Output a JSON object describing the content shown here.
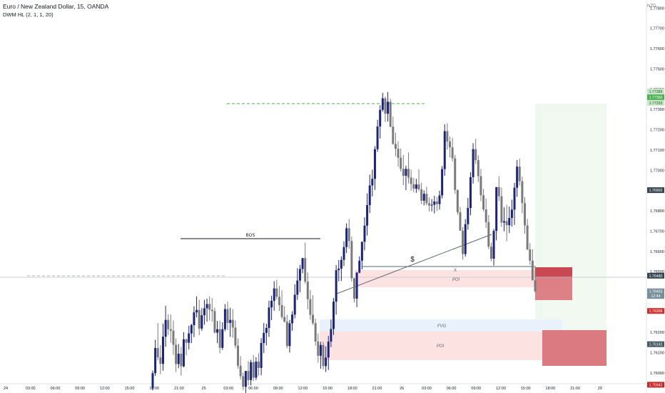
{
  "header": {
    "title": "Euro / New Zealand Dollar, 15, OANDA",
    "indicator": "DWM HL (2, 1, 1, 20)",
    "currency": "NZD"
  },
  "chart_data": {
    "type": "candlestick",
    "symbol": "EURNZD",
    "timeframe": "15",
    "ylim": [
      1.7594,
      1.7784
    ],
    "price_ticks": [
      1.778,
      1.777,
      1.776,
      1.775,
      1.774,
      1.773,
      1.772,
      1.771,
      1.77,
      1.769,
      1.768,
      1.767,
      1.766,
      1.765,
      1.762,
      1.761,
      1.76
    ],
    "time_ticks": [
      "24",
      "03:00",
      "06:00",
      "09:00",
      "12:00",
      "15:00",
      "18:00",
      "21:00",
      "25",
      "03:00",
      "06:00",
      "09:00",
      "12:00",
      "15:00",
      "18:00",
      "21:00",
      "26",
      "03:00",
      "06:00",
      "09:00",
      "12:00",
      "15:00",
      "18:00",
      "21:00",
      "29"
    ],
    "price_labels": [
      {
        "text": "1.77389",
        "value": 1.77389,
        "color": "#c8e6c9",
        "text_color": "#1b5e20"
      },
      {
        "text": "1.77360",
        "value": 1.7736,
        "color": "#4caf50",
        "text_color": "#ffffff"
      },
      {
        "text": "1.77333",
        "value": 1.77333,
        "color": "#c8e6c9",
        "text_color": "#1b5e20"
      },
      {
        "text": "1.76902",
        "value": 1.76902,
        "color": "#37474f",
        "text_color": "#ffffff"
      },
      {
        "text": "1.76480",
        "value": 1.7648,
        "color": "#37474f",
        "text_color": "#ffffff"
      },
      {
        "text": "1.76403",
        "value": 1.76403,
        "color": "#78909c",
        "text_color": "#ffffff"
      },
      {
        "text": "12:44",
        "value": 1.7638,
        "color": "#78909c",
        "text_color": "#ffffff"
      },
      {
        "text": "1.76306",
        "value": 1.76306,
        "color": "#d32f2f",
        "text_color": "#ffffff"
      },
      {
        "text": "1.76142",
        "value": 1.76142,
        "color": "#455a64",
        "text_color": "#ffffff"
      },
      {
        "text": "1.75942",
        "value": 1.75942,
        "color": "#c62828",
        "text_color": "#ffffff"
      }
    ],
    "annotations": {
      "bos": "BOS",
      "poi_upper": "POI",
      "fvg": "FVG",
      "poi_lower": "POI",
      "x_mark": "X",
      "liquidity": "$"
    },
    "colors": {
      "up": "#1a237e",
      "down": "#7a7a7a",
      "poi_fill": "#fde2e2",
      "fvg_fill": "#e8f1fc",
      "target_fill": "#e8f5e9",
      "stop_fill": "#d9747a"
    },
    "candles": [
      [
        1.75925,
        1.76012,
        1.75914,
        1.75999
      ],
      [
        1.75999,
        1.76164,
        1.75985,
        1.76123
      ],
      [
        1.76123,
        1.76247,
        1.76062,
        1.76077
      ],
      [
        1.76077,
        1.76137,
        1.75994,
        1.76045
      ],
      [
        1.76045,
        1.76243,
        1.76011,
        1.76179
      ],
      [
        1.76179,
        1.76331,
        1.76129,
        1.76262
      ],
      [
        1.76262,
        1.7629,
        1.76188,
        1.76216
      ],
      [
        1.76216,
        1.76289,
        1.76149,
        1.76208
      ],
      [
        1.76208,
        1.76259,
        1.76089,
        1.76139
      ],
      [
        1.76139,
        1.76171,
        1.76005,
        1.76044
      ],
      [
        1.76044,
        1.76143,
        1.76024,
        1.76095
      ],
      [
        1.76095,
        1.76129,
        1.75987,
        1.76033
      ],
      [
        1.76033,
        1.76201,
        1.76028,
        1.76166
      ],
      [
        1.76166,
        1.7617,
        1.76087,
        1.76149
      ],
      [
        1.76149,
        1.76233,
        1.76116,
        1.76195
      ],
      [
        1.76195,
        1.76243,
        1.76147,
        1.76236
      ],
      [
        1.76236,
        1.76329,
        1.76177,
        1.76299
      ],
      [
        1.76299,
        1.76378,
        1.76275,
        1.76311
      ],
      [
        1.76311,
        1.76361,
        1.76187,
        1.76219
      ],
      [
        1.76219,
        1.7632,
        1.76208,
        1.76285
      ],
      [
        1.76285,
        1.76361,
        1.76238,
        1.76319
      ],
      [
        1.76319,
        1.76367,
        1.76253,
        1.7634
      ],
      [
        1.7634,
        1.76377,
        1.76259,
        1.76312
      ],
      [
        1.76312,
        1.76369,
        1.76254,
        1.76305
      ],
      [
        1.76305,
        1.76322,
        1.76195,
        1.76199
      ],
      [
        1.76199,
        1.76257,
        1.76147,
        1.76216
      ],
      [
        1.76216,
        1.76258,
        1.76097,
        1.76124
      ],
      [
        1.76124,
        1.7625,
        1.76114,
        1.76216
      ],
      [
        1.76216,
        1.7634,
        1.76206,
        1.76315
      ],
      [
        1.76315,
        1.76352,
        1.76211,
        1.76247
      ],
      [
        1.76247,
        1.76322,
        1.76178,
        1.76262
      ],
      [
        1.76262,
        1.76315,
        1.76174,
        1.76224
      ],
      [
        1.76224,
        1.76259,
        1.76122,
        1.76135
      ],
      [
        1.76135,
        1.76171,
        1.76021,
        1.76036
      ],
      [
        1.76036,
        1.76083,
        1.75968,
        1.75984
      ],
      [
        1.75984,
        1.76002,
        1.75916,
        1.75932
      ],
      [
        1.75932,
        1.76007,
        1.7587,
        1.7601
      ],
      [
        1.7601,
        1.76059,
        1.75939,
        1.75965
      ],
      [
        1.75965,
        1.76065,
        1.75939,
        1.76053
      ],
      [
        1.76053,
        1.76089,
        1.75961,
        1.75977
      ],
      [
        1.75977,
        1.76078,
        1.75965,
        1.76056
      ],
      [
        1.76056,
        1.76097,
        1.75987,
        1.76025
      ],
      [
        1.76025,
        1.76172,
        1.75989,
        1.76148
      ],
      [
        1.76148,
        1.76247,
        1.76099,
        1.76198
      ],
      [
        1.76198,
        1.76243,
        1.76136,
        1.76222
      ],
      [
        1.76222,
        1.76357,
        1.76178,
        1.76323
      ],
      [
        1.76323,
        1.76381,
        1.76261,
        1.76356
      ],
      [
        1.76356,
        1.76453,
        1.76307,
        1.76417
      ],
      [
        1.76417,
        1.7646,
        1.76362,
        1.76376
      ],
      [
        1.76376,
        1.76429,
        1.76306,
        1.76335
      ],
      [
        1.76335,
        1.76408,
        1.76265,
        1.76276
      ],
      [
        1.76276,
        1.7633,
        1.76249,
        1.76253
      ],
      [
        1.76253,
        1.76287,
        1.76122,
        1.76133
      ],
      [
        1.76133,
        1.76262,
        1.76101,
        1.76245
      ],
      [
        1.76245,
        1.76305,
        1.76208,
        1.76288
      ],
      [
        1.76288,
        1.76437,
        1.76269,
        1.76386
      ],
      [
        1.76386,
        1.76517,
        1.76361,
        1.76456
      ],
      [
        1.76456,
        1.76533,
        1.76398,
        1.76513
      ],
      [
        1.76513,
        1.76567,
        1.76492,
        1.76567
      ],
      [
        1.76567,
        1.76643,
        1.76441,
        1.76451
      ],
      [
        1.76451,
        1.76496,
        1.76314,
        1.76364
      ],
      [
        1.76364,
        1.7641,
        1.76262,
        1.76287
      ],
      [
        1.76287,
        1.76384,
        1.76237,
        1.76246
      ],
      [
        1.76246,
        1.76268,
        1.76134,
        1.76155
      ],
      [
        1.76155,
        1.76194,
        1.76051,
        1.76085
      ],
      [
        1.76085,
        1.76154,
        1.76021,
        1.76138
      ],
      [
        1.76138,
        1.76154,
        1.76018,
        1.76034
      ],
      [
        1.76034,
        1.76131,
        1.76005,
        1.76076
      ],
      [
        1.76076,
        1.76183,
        1.76015,
        1.76155
      ],
      [
        1.76155,
        1.76264,
        1.76128,
        1.76217
      ],
      [
        1.76217,
        1.7637,
        1.76188,
        1.76352
      ],
      [
        1.76352,
        1.76532,
        1.76288,
        1.76507
      ],
      [
        1.76507,
        1.76557,
        1.76452,
        1.76515
      ],
      [
        1.76515,
        1.76575,
        1.76454,
        1.76558
      ],
      [
        1.76558,
        1.76649,
        1.76527,
        1.76621
      ],
      [
        1.76621,
        1.76738,
        1.76592,
        1.76714
      ],
      [
        1.76714,
        1.76759,
        1.76613,
        1.76651
      ],
      [
        1.76651,
        1.76673,
        1.76451,
        1.76467
      ],
      [
        1.76467,
        1.76469,
        1.76347,
        1.76367
      ],
      [
        1.76367,
        1.76498,
        1.76325,
        1.76495
      ],
      [
        1.76495,
        1.76575,
        1.76491,
        1.76554
      ],
      [
        1.76554,
        1.76648,
        1.76511,
        1.76647
      ],
      [
        1.76647,
        1.76768,
        1.76605,
        1.76727
      ],
      [
        1.76727,
        1.76886,
        1.76678,
        1.76828
      ],
      [
        1.76828,
        1.76979,
        1.76789,
        1.76925
      ],
      [
        1.76925,
        1.77003,
        1.76871,
        1.76958
      ],
      [
        1.76958,
        1.77119,
        1.76903,
        1.77104
      ],
      [
        1.77104,
        1.77249,
        1.77091,
        1.77216
      ],
      [
        1.77216,
        1.77321,
        1.77157,
        1.77298
      ],
      [
        1.77298,
        1.77382,
        1.77289,
        1.77355
      ],
      [
        1.77355,
        1.77363,
        1.77239,
        1.77279
      ],
      [
        1.77279,
        1.77386,
        1.7724,
        1.77338
      ],
      [
        1.77338,
        1.77353,
        1.77212,
        1.77215
      ],
      [
        1.77215,
        1.77265,
        1.77126,
        1.7713
      ],
      [
        1.7713,
        1.77186,
        1.77069,
        1.77106
      ],
      [
        1.77106,
        1.77144,
        1.77017,
        1.77062
      ],
      [
        1.77062,
        1.77108,
        1.76994,
        1.77007
      ],
      [
        1.77007,
        1.77075,
        1.76926,
        1.76973
      ],
      [
        1.76973,
        1.77023,
        1.76902,
        1.77007
      ],
      [
        1.77007,
        1.77088,
        1.76935,
        1.76964
      ],
      [
        1.76964,
        1.77003,
        1.76899,
        1.76932
      ],
      [
        1.76932,
        1.76962,
        1.76891,
        1.76909
      ],
      [
        1.76909,
        1.76958,
        1.76889,
        1.7693
      ],
      [
        1.7693,
        1.77005,
        1.76897,
        1.76906
      ],
      [
        1.76906,
        1.76939,
        1.76833,
        1.7685
      ],
      [
        1.7685,
        1.76901,
        1.76827,
        1.76884
      ],
      [
        1.76884,
        1.76919,
        1.76827,
        1.76837
      ],
      [
        1.76837,
        1.76866,
        1.76797,
        1.76826
      ],
      [
        1.76826,
        1.76858,
        1.76797,
        1.7683
      ],
      [
        1.7683,
        1.76874,
        1.76787,
        1.76846
      ],
      [
        1.76846,
        1.76868,
        1.76799,
        1.76833
      ],
      [
        1.76833,
        1.76899,
        1.76806,
        1.76876
      ],
      [
        1.76876,
        1.77021,
        1.76861,
        1.77006
      ],
      [
        1.77006,
        1.77227,
        1.76973,
        1.77193
      ],
      [
        1.77193,
        1.77232,
        1.77102,
        1.77142
      ],
      [
        1.77142,
        1.77166,
        1.77063,
        1.77113
      ],
      [
        1.77113,
        1.7716,
        1.77044,
        1.77059
      ],
      [
        1.77059,
        1.77076,
        1.76883,
        1.76903
      ],
      [
        1.76903,
        1.76905,
        1.76781,
        1.76793
      ],
      [
        1.76793,
        1.76819,
        1.76702,
        1.76702
      ],
      [
        1.76702,
        1.76719,
        1.76559,
        1.76587
      ],
      [
        1.76587,
        1.76758,
        1.76574,
        1.76734
      ],
      [
        1.76734,
        1.76864,
        1.76707,
        1.76814
      ],
      [
        1.76814,
        1.7699,
        1.76778,
        1.76966
      ],
      [
        1.76966,
        1.77134,
        1.76934,
        1.77104
      ],
      [
        1.77104,
        1.77155,
        1.77031,
        1.7705
      ],
      [
        1.7705,
        1.77074,
        1.76942,
        1.76971
      ],
      [
        1.76971,
        1.77007,
        1.76848,
        1.76877
      ],
      [
        1.76877,
        1.76908,
        1.76797,
        1.76807
      ],
      [
        1.76807,
        1.76861,
        1.76715,
        1.76744
      ],
      [
        1.76744,
        1.76779,
        1.76611,
        1.76623
      ],
      [
        1.76623,
        1.76643,
        1.76551,
        1.76564
      ],
      [
        1.76564,
        1.76711,
        1.7653,
        1.76701
      ],
      [
        1.76701,
        1.76917,
        1.76654,
        1.76917
      ],
      [
        1.76917,
        1.76971,
        1.76848,
        1.76872
      ],
      [
        1.76872,
        1.76915,
        1.76721,
        1.76742
      ],
      [
        1.76742,
        1.76817,
        1.76699,
        1.76749
      ],
      [
        1.76749,
        1.76829,
        1.7665,
        1.76729
      ],
      [
        1.76729,
        1.76821,
        1.76691,
        1.76765
      ],
      [
        1.76765,
        1.76855,
        1.76722,
        1.76806
      ],
      [
        1.76806,
        1.76938,
        1.7673,
        1.76914
      ],
      [
        1.76914,
        1.77051,
        1.76869,
        1.77018
      ],
      [
        1.77018,
        1.77057,
        1.76925,
        1.76946
      ],
      [
        1.76946,
        1.76968,
        1.76787,
        1.76838
      ],
      [
        1.76838,
        1.76868,
        1.76687,
        1.76728
      ],
      [
        1.76728,
        1.7676,
        1.76606,
        1.7661
      ],
      [
        1.7661,
        1.76641,
        1.76534,
        1.76554
      ],
      [
        1.76554,
        1.7661,
        1.76457,
        1.76457
      ],
      [
        1.76457,
        1.76527,
        1.76397,
        1.76403
      ]
    ]
  }
}
